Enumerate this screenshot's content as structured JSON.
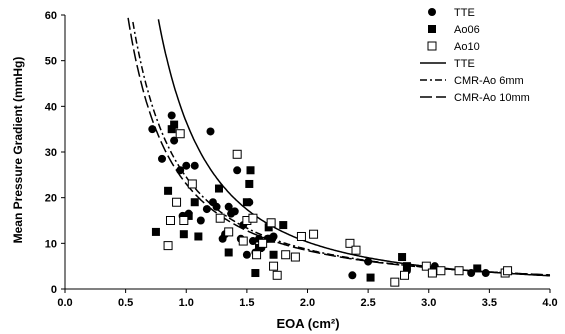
{
  "chart_data": {
    "type": "scatter",
    "xlabel": "EOA (cm²)",
    "ylabel": "Mean Pressure Gradient (mmHg)",
    "xlim": [
      0,
      4
    ],
    "ylim": [
      0,
      60
    ],
    "xticks": [
      "0.0",
      "0.5",
      "1.0",
      "1.5",
      "2.0",
      "2.5",
      "3.0",
      "3.5",
      "4.0"
    ],
    "yticks": [
      "0",
      "10",
      "20",
      "30",
      "40",
      "50",
      "60"
    ],
    "grid": false,
    "legend_position": "top-right",
    "series": [
      {
        "name": "TTE",
        "kind": "points",
        "marker": "circle",
        "color": "#000000",
        "points": [
          [
            0.72,
            35
          ],
          [
            0.8,
            28.5
          ],
          [
            0.88,
            38
          ],
          [
            0.9,
            32.5
          ],
          [
            0.95,
            26
          ],
          [
            0.97,
            16
          ],
          [
            1.0,
            27
          ],
          [
            1.02,
            16.5
          ],
          [
            1.07,
            27
          ],
          [
            1.12,
            15
          ],
          [
            1.17,
            17.5
          ],
          [
            1.2,
            34.5
          ],
          [
            1.22,
            19
          ],
          [
            1.25,
            18
          ],
          [
            1.3,
            11
          ],
          [
            1.32,
            12
          ],
          [
            1.35,
            18
          ],
          [
            1.37,
            16.5
          ],
          [
            1.4,
            17
          ],
          [
            1.42,
            26
          ],
          [
            1.45,
            11
          ],
          [
            1.47,
            14
          ],
          [
            1.5,
            7.5
          ],
          [
            1.52,
            19
          ],
          [
            1.55,
            10.5
          ],
          [
            1.57,
            8
          ],
          [
            1.6,
            11
          ],
          [
            1.62,
            9
          ],
          [
            1.67,
            11
          ],
          [
            1.72,
            11.5
          ],
          [
            2.37,
            3
          ],
          [
            2.5,
            6
          ],
          [
            2.82,
            4
          ],
          [
            3.05,
            5
          ],
          [
            3.35,
            3.5
          ],
          [
            3.47,
            3.5
          ]
        ]
      },
      {
        "name": "Ao06",
        "kind": "points",
        "marker": "square-filled",
        "color": "#000000",
        "points": [
          [
            0.75,
            12.5
          ],
          [
            0.85,
            21.5
          ],
          [
            0.88,
            35
          ],
          [
            0.9,
            36
          ],
          [
            0.98,
            12
          ],
          [
            1.02,
            16
          ],
          [
            1.07,
            19
          ],
          [
            1.1,
            11.5
          ],
          [
            1.27,
            22
          ],
          [
            1.35,
            8
          ],
          [
            1.5,
            19
          ],
          [
            1.52,
            23
          ],
          [
            1.53,
            26
          ],
          [
            1.57,
            3.5
          ],
          [
            1.6,
            9
          ],
          [
            1.68,
            13.5
          ],
          [
            1.7,
            11
          ],
          [
            1.72,
            7.5
          ],
          [
            1.8,
            14
          ],
          [
            2.52,
            2.5
          ],
          [
            2.78,
            7
          ],
          [
            2.82,
            5
          ],
          [
            3.4,
            4.5
          ]
        ]
      },
      {
        "name": "Ao10",
        "kind": "points",
        "marker": "square-open",
        "color": "#000000",
        "points": [
          [
            0.85,
            9.5
          ],
          [
            0.87,
            15
          ],
          [
            0.92,
            19
          ],
          [
            0.95,
            34
          ],
          [
            0.98,
            15
          ],
          [
            1.05,
            23
          ],
          [
            1.28,
            15.5
          ],
          [
            1.35,
            12.5
          ],
          [
            1.42,
            29.5
          ],
          [
            1.47,
            10.5
          ],
          [
            1.5,
            15
          ],
          [
            1.55,
            15.5
          ],
          [
            1.58,
            7.5
          ],
          [
            1.63,
            10
          ],
          [
            1.7,
            14.5
          ],
          [
            1.72,
            5
          ],
          [
            1.75,
            3
          ],
          [
            1.82,
            7.5
          ],
          [
            1.9,
            7
          ],
          [
            1.95,
            11.5
          ],
          [
            2.05,
            12
          ],
          [
            2.35,
            10
          ],
          [
            2.4,
            8.5
          ],
          [
            2.72,
            1.5
          ],
          [
            2.8,
            3
          ],
          [
            2.98,
            5
          ],
          [
            3.03,
            3.5
          ],
          [
            3.1,
            4
          ],
          [
            3.25,
            4
          ],
          [
            3.63,
            3.5
          ],
          [
            3.65,
            4
          ]
        ]
      },
      {
        "name": "TTE",
        "kind": "curve",
        "dash": "solid",
        "color": "#000000",
        "coef": 36.6,
        "power": 1.83,
        "xmin": 0.6
      },
      {
        "name": "CMR-Ao 6mm",
        "kind": "curve",
        "dash": "dashdot",
        "color": "#000000",
        "coef": 24.5,
        "power": 1.5,
        "xmin": 0.36
      },
      {
        "name": "CMR-Ao 10mm",
        "kind": "curve",
        "dash": "longdash",
        "color": "#000000",
        "coef": 23.0,
        "power": 1.45,
        "xmin": 0.36
      }
    ]
  }
}
